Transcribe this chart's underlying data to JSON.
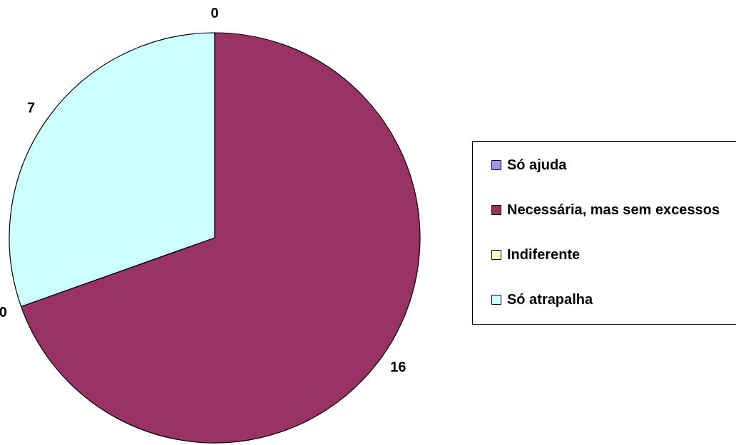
{
  "chart_data": {
    "type": "pie",
    "categories": [
      "Só ajuda",
      "Necessária, mas sem excessos",
      "Indiferente",
      "Só atrapalha"
    ],
    "values": [
      0,
      16,
      0,
      7
    ],
    "colors": [
      "#9999ff",
      "#993366",
      "#ffffcc",
      "#ccffff"
    ],
    "value_labels": [
      "0",
      "16",
      "0",
      "7"
    ],
    "legend": "right"
  }
}
